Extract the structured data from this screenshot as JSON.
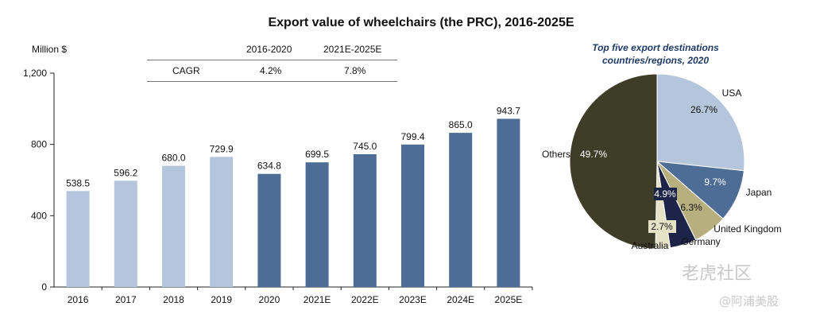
{
  "title": "Export value of wheelchairs (the PRC), 2016-2025E",
  "cagr_table": {
    "periods": [
      "2016-2020",
      "2021E-2025E"
    ],
    "row_label": "CAGR",
    "values": [
      "4.2%",
      "7.8%"
    ]
  },
  "chart_data": [
    {
      "type": "bar",
      "title": "Export value of wheelchairs (the PRC), 2016-2025E",
      "ylabel": "Million $",
      "xlabel": "",
      "categories": [
        "2016",
        "2017",
        "2018",
        "2019",
        "2020",
        "2021E",
        "2022E",
        "2023E",
        "2024E",
        "2025E"
      ],
      "values": [
        538.5,
        596.2,
        680.0,
        729.9,
        634.8,
        699.5,
        745.0,
        799.4,
        865.0,
        943.7
      ],
      "value_labels": [
        "538.5",
        "596.2",
        "680.0",
        "729.9",
        "634.8",
        "699.5",
        "745.0",
        "799.4",
        "865.0",
        "943.7"
      ],
      "ylim": [
        0,
        1200
      ],
      "yticks": [
        0,
        400,
        800,
        1200
      ],
      "ytick_labels": [
        "0",
        "400",
        "800",
        "1,200"
      ],
      "colors": [
        "#b4c5dc",
        "#b4c5dc",
        "#b4c5dc",
        "#b4c5dc",
        "#4d6d96",
        "#4d6d96",
        "#4d6d96",
        "#4d6d96",
        "#4d6d96",
        "#4d6d96"
      ]
    },
    {
      "type": "pie",
      "title": "Top five export destinations countries/regions, 2020",
      "title_lines": [
        "Top five export destinations",
        "countries/regions, 2020"
      ],
      "labels": [
        "USA",
        "Japan",
        "United Kingdom",
        "Germany",
        "Australia",
        "Others"
      ],
      "values": [
        26.7,
        9.7,
        6.3,
        4.9,
        2.7,
        49.7
      ],
      "value_labels": [
        "26.7%",
        "9.7%",
        "6.3%",
        "4.9%",
        "2.7%",
        "49.7%"
      ],
      "colors": [
        "#b4c5dc",
        "#4d6d96",
        "#b7b07e",
        "#1c2547",
        "#e6e2c7",
        "#3d3d28"
      ]
    }
  ],
  "watermark": {
    "line1": "老虎社区",
    "line2": "@阿浦美股"
  }
}
